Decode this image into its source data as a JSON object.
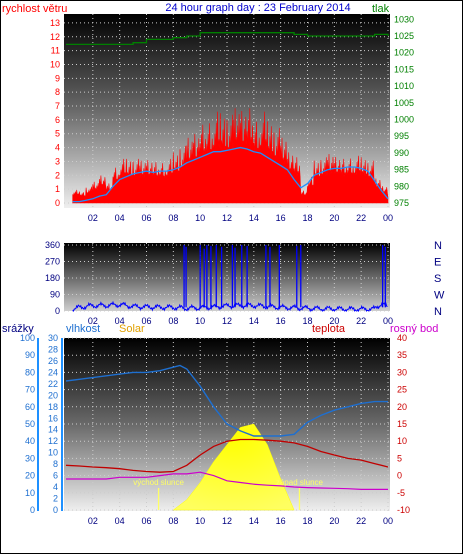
{
  "header": {
    "left_label": "rychlost větru",
    "title": "24 hour graph day : 23 February 2014",
    "right_label": "tlak"
  },
  "mid_header": {
    "labels": [
      "srážky",
      "vlhkost",
      "Solar",
      "teplota",
      "rosný bod"
    ]
  },
  "colors": {
    "wind": "#ff0000",
    "wind_avg": "#1e90ff",
    "pressure": "#008000",
    "direction": "#0000ff",
    "precip": "#0000ff",
    "humidity": "#1e6fd0",
    "solar": "#ffff00",
    "temperature": "#c00000",
    "dewpoint": "#cc00cc",
    "sun_label": "#ffff66",
    "title": "#0000cc",
    "temp_axis": "#ff0000",
    "dew_axis": "#cc00cc"
  },
  "chart_data": [
    {
      "type": "line",
      "x_ticks": [
        "02",
        "04",
        "06",
        "08",
        "10",
        "12",
        "14",
        "16",
        "18",
        "20",
        "22",
        "00"
      ],
      "y_left_ticks": [
        "0",
        "1",
        "2",
        "3",
        "4",
        "5",
        "6",
        "7",
        "8",
        "9",
        "10",
        "11",
        "12",
        "13"
      ],
      "y_right_ticks": [
        "975",
        "980",
        "985",
        "990",
        "995",
        "1000",
        "1005",
        "1010",
        "1015",
        "1020",
        "1025",
        "1030"
      ],
      "ylim_left": [
        0,
        13.5
      ],
      "ylim_right": [
        975,
        1031
      ],
      "series": [
        {
          "name": "rychlost větru",
          "axis": "left",
          "x": [
            0.5,
            1,
            1.5,
            2,
            2.5,
            3,
            3.5,
            4,
            4.5,
            5,
            5.5,
            6,
            6.5,
            7,
            7.5,
            8,
            8.5,
            9,
            9.5,
            10,
            10.5,
            11,
            11.5,
            12,
            12.5,
            13,
            13.5,
            14,
            14.5,
            15,
            15.5,
            16,
            16.5,
            17,
            17.5,
            18,
            18.5,
            19,
            19.5,
            20,
            20.5,
            21,
            21.5,
            22,
            22.5,
            23,
            23.5,
            24
          ],
          "y": [
            0.8,
            0.7,
            1.0,
            1.3,
            1.8,
            1.2,
            2.3,
            2.7,
            2.7,
            2.7,
            2.6,
            2.8,
            2.5,
            2.6,
            2.7,
            3.1,
            3.5,
            4.0,
            4.5,
            4.8,
            5.2,
            5.6,
            5.5,
            5.4,
            5.8,
            6.0,
            5.8,
            5.3,
            5.6,
            5.0,
            4.6,
            4.0,
            3.3,
            2.8,
            0.8,
            1.6,
            2.6,
            2.8,
            3.0,
            3.0,
            2.7,
            2.9,
            2.9,
            2.8,
            2.6,
            1.5,
            1.1,
            0.4
          ]
        },
        {
          "name": "wind average",
          "axis": "left",
          "x": [
            0.5,
            1,
            1.5,
            2,
            2.5,
            3,
            3.5,
            4,
            4.5,
            5,
            5.5,
            6,
            6.5,
            7,
            7.5,
            8,
            8.5,
            9,
            9.5,
            10,
            10.5,
            11,
            11.5,
            12,
            12.5,
            13,
            13.5,
            14,
            14.5,
            15,
            15.5,
            16,
            16.5,
            17,
            17.5,
            18,
            18.5,
            19,
            19.5,
            20,
            20.5,
            21,
            21.5,
            22,
            22.5,
            23,
            23.5,
            24
          ],
          "y": [
            0.1,
            0.1,
            0.2,
            0.3,
            0.5,
            0.6,
            1.2,
            1.7,
            1.9,
            2.1,
            2.2,
            2.3,
            2.2,
            2.3,
            2.3,
            2.4,
            2.6,
            2.9,
            3.1,
            3.3,
            3.5,
            3.7,
            3.7,
            3.8,
            3.9,
            4.0,
            3.9,
            3.7,
            3.6,
            3.3,
            3.0,
            2.7,
            2.4,
            1.7,
            1.1,
            1.4,
            2.0,
            2.2,
            2.4,
            2.5,
            2.5,
            2.6,
            2.6,
            2.5,
            2.3,
            1.6,
            0.9,
            0.3
          ]
        },
        {
          "name": "tlak",
          "axis": "right",
          "x": [
            0,
            2,
            4,
            5,
            6,
            7,
            8,
            9,
            10,
            12,
            14,
            16,
            17,
            18,
            20,
            22,
            23,
            24
          ],
          "y": [
            1022.5,
            1022.5,
            1022.5,
            1023,
            1024,
            1024,
            1024.5,
            1025,
            1026,
            1026,
            1026,
            1026,
            1025.5,
            1025,
            1025,
            1025,
            1025.5,
            1025
          ]
        }
      ]
    },
    {
      "type": "scatter",
      "x_ticks": [
        "02",
        "04",
        "06",
        "08",
        "10",
        "12",
        "14",
        "16",
        "18",
        "20",
        "22",
        "00"
      ],
      "y_left_ticks": [
        "0",
        "90",
        "180",
        "270",
        "360"
      ],
      "y_right_ticks": [
        "N",
        "W",
        "S",
        "E",
        "N"
      ],
      "ylim": [
        0,
        360
      ],
      "series": [
        {
          "name": "direction",
          "kind": "baseline",
          "x": [
            0.5,
            1,
            1.5,
            2,
            3,
            4,
            5,
            6,
            7,
            8,
            9,
            10,
            11,
            12,
            13,
            14,
            15,
            16,
            17,
            18,
            19,
            20,
            21,
            22,
            23,
            23.5,
            24
          ],
          "y": [
            10,
            20,
            25,
            30,
            30,
            35,
            25,
            22,
            20,
            20,
            15,
            18,
            22,
            28,
            30,
            30,
            25,
            20,
            18,
            15,
            12,
            12,
            10,
            10,
            12,
            40,
            20
          ]
        },
        {
          "name": "direction spikes",
          "x": [
            8.8,
            8.95,
            10.0,
            10.3,
            10.5,
            10.8,
            11.2,
            11.6,
            12.4,
            12.6,
            13.1,
            13.5,
            14.9,
            15.2,
            15.9,
            17.2,
            17.5,
            23.6,
            23.8
          ],
          "y": [
            360,
            350,
            360,
            340,
            360,
            355,
            360,
            350,
            360,
            345,
            360,
            355,
            360,
            350,
            360,
            355,
            360,
            360,
            350
          ]
        }
      ]
    },
    {
      "type": "line",
      "x_ticks": [
        "02",
        "04",
        "06",
        "08",
        "10",
        "12",
        "14",
        "16",
        "18",
        "20",
        "22",
        "00"
      ],
      "y_left_ticks": [
        "0",
        "10",
        "20",
        "30",
        "40",
        "50",
        "60",
        "70",
        "80",
        "90",
        "100"
      ],
      "y_left2_ticks": [
        "0",
        "2",
        "4",
        "6",
        "8",
        "10",
        "12",
        "14",
        "16",
        "18",
        "20",
        "22",
        "24",
        "26",
        "28",
        "30"
      ],
      "y_right_ticks": [
        "-10",
        "-5",
        "0",
        "5",
        "10",
        "15",
        "20",
        "25",
        "30",
        "35",
        "40"
      ],
      "ylim_humidity": [
        0,
        100
      ],
      "ylim_temperature": [
        -10,
        40
      ],
      "series": [
        {
          "name": "vlhkost",
          "x": [
            0,
            1,
            2,
            3,
            4,
            5,
            6,
            7,
            8,
            8.5,
            9,
            10,
            11,
            12,
            13,
            14,
            15,
            16,
            17,
            18,
            19,
            20,
            21,
            22,
            23,
            24
          ],
          "y": [
            75,
            76,
            77,
            78,
            79,
            80,
            80,
            81,
            83,
            84,
            82,
            72,
            60,
            50,
            46,
            43,
            43,
            43,
            44,
            51,
            55,
            58,
            60,
            62,
            63,
            63
          ]
        },
        {
          "name": "teplota",
          "x": [
            0,
            1,
            2,
            3,
            4,
            5,
            6,
            7,
            8,
            9,
            10,
            11,
            12,
            13,
            14,
            15,
            16,
            17,
            18,
            19,
            20,
            21,
            22,
            23,
            24
          ],
          "y": [
            3,
            2.8,
            2.5,
            2.3,
            2,
            1.5,
            1.2,
            1,
            1.2,
            3,
            6,
            8.5,
            10,
            10.5,
            10.5,
            10.3,
            10,
            9.5,
            8.5,
            7,
            6,
            5,
            4.5,
            3.5,
            2.5
          ]
        },
        {
          "name": "rosný bod",
          "x": [
            0,
            1,
            2,
            3,
            4,
            5,
            6,
            7,
            8,
            9,
            10,
            11,
            12,
            13,
            14,
            15,
            16,
            17,
            18,
            19,
            20,
            21,
            22,
            23,
            24
          ],
          "y": [
            -1,
            -1,
            -1,
            -1,
            -0.5,
            -0.5,
            -0.5,
            0,
            0.5,
            0.5,
            1,
            0,
            -1.5,
            -2,
            -2.5,
            -2.8,
            -3,
            -3.3,
            -3.5,
            -3.6,
            -3.7,
            -3.8,
            -4,
            -4,
            -4
          ]
        },
        {
          "name": "Solar",
          "x": [
            8,
            9,
            10,
            11,
            12,
            13,
            14,
            15,
            16,
            17
          ],
          "y": [
            0,
            3,
            8,
            14,
            19,
            24,
            25,
            19,
            9,
            0
          ]
        }
      ],
      "annotations": [
        {
          "text": "východ slunce",
          "x": 6.9
        },
        {
          "text": "západ slunce",
          "x": 17.4
        }
      ]
    }
  ]
}
